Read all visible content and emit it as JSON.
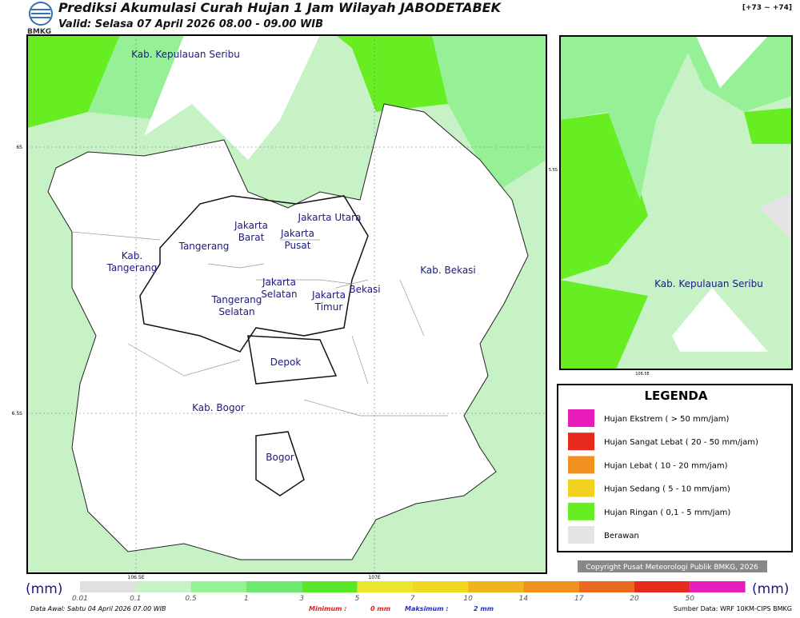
{
  "header": {
    "title": "Prediksi Akumulasi Curah Hujan 1 Jam Wilayah JABODETABEK",
    "valid": "Valid: Selasa 07 April 2026 08.00 - 09.00 WIB",
    "logo": "BMKG",
    "range": "[+73 ~ +74]"
  },
  "map": {
    "labels": [
      "Kab. Kepulauan Seribu",
      "Jakarta Utara",
      "Jakarta Barat",
      "Jakarta Pusat",
      "Tangerang",
      "Kab. Tangerang",
      "Jakarta Selatan",
      "Jakarta Timur",
      "Bekasi",
      "Kab. Bekasi",
      "Tangerang Selatan",
      "Depok",
      "Kab. Bogor",
      "Bogor"
    ],
    "lat_labels": [
      "6S",
      "6.5S"
    ],
    "lon_labels": [
      "106.5E",
      "107E"
    ]
  },
  "inset": {
    "label": "Kab. Kepulauan Seribu",
    "lat_label": "5.5S",
    "lon_label": "106.5E"
  },
  "legend": {
    "title": "LEGENDA",
    "items": [
      {
        "label": "Hujan Ekstrem ( > 50 mm/jam)",
        "color": "#e81cb8"
      },
      {
        "label": "Hujan Sangat Lebat ( 20 - 50 mm/jam)",
        "color": "#e82a1e"
      },
      {
        "label": "Hujan Lebat ( 10 - 20 mm/jam)",
        "color": "#f0901e"
      },
      {
        "label": "Hujan Sedang ( 5 - 10 mm/jam)",
        "color": "#f0d21e"
      },
      {
        "label": "Hujan Ringan ( 0,1 - 5 mm/jam)",
        "color": "#66ee22"
      },
      {
        "label": "Berawan",
        "color": "#e4e4e4"
      }
    ]
  },
  "copyright": "Copyright Pusat Meteorologi Publik BMKG, 2026",
  "colorbar": {
    "unit": "(mm)",
    "ticks": [
      0.01,
      0.1,
      0.5,
      1,
      3,
      5,
      7,
      10,
      14,
      17,
      20,
      50
    ],
    "colors": [
      "#e0e0e0",
      "#c6f2c6",
      "#96f096",
      "#6ee86e",
      "#58e82a",
      "#eae62a",
      "#f0d81e",
      "#f0b41e",
      "#f0901e",
      "#ec6a1e",
      "#e82a1e",
      "#e81cb8"
    ]
  },
  "footer": {
    "data_awal": "Data Awal: Sabtu 04 April 2026 07.00 WIB",
    "min_label": "Minimum :",
    "min_value": "0 mm",
    "max_label": "Maksimum :",
    "max_value": "2 mm",
    "source": "Sumber Data: WRF 10KM-CIPS BMKG"
  }
}
